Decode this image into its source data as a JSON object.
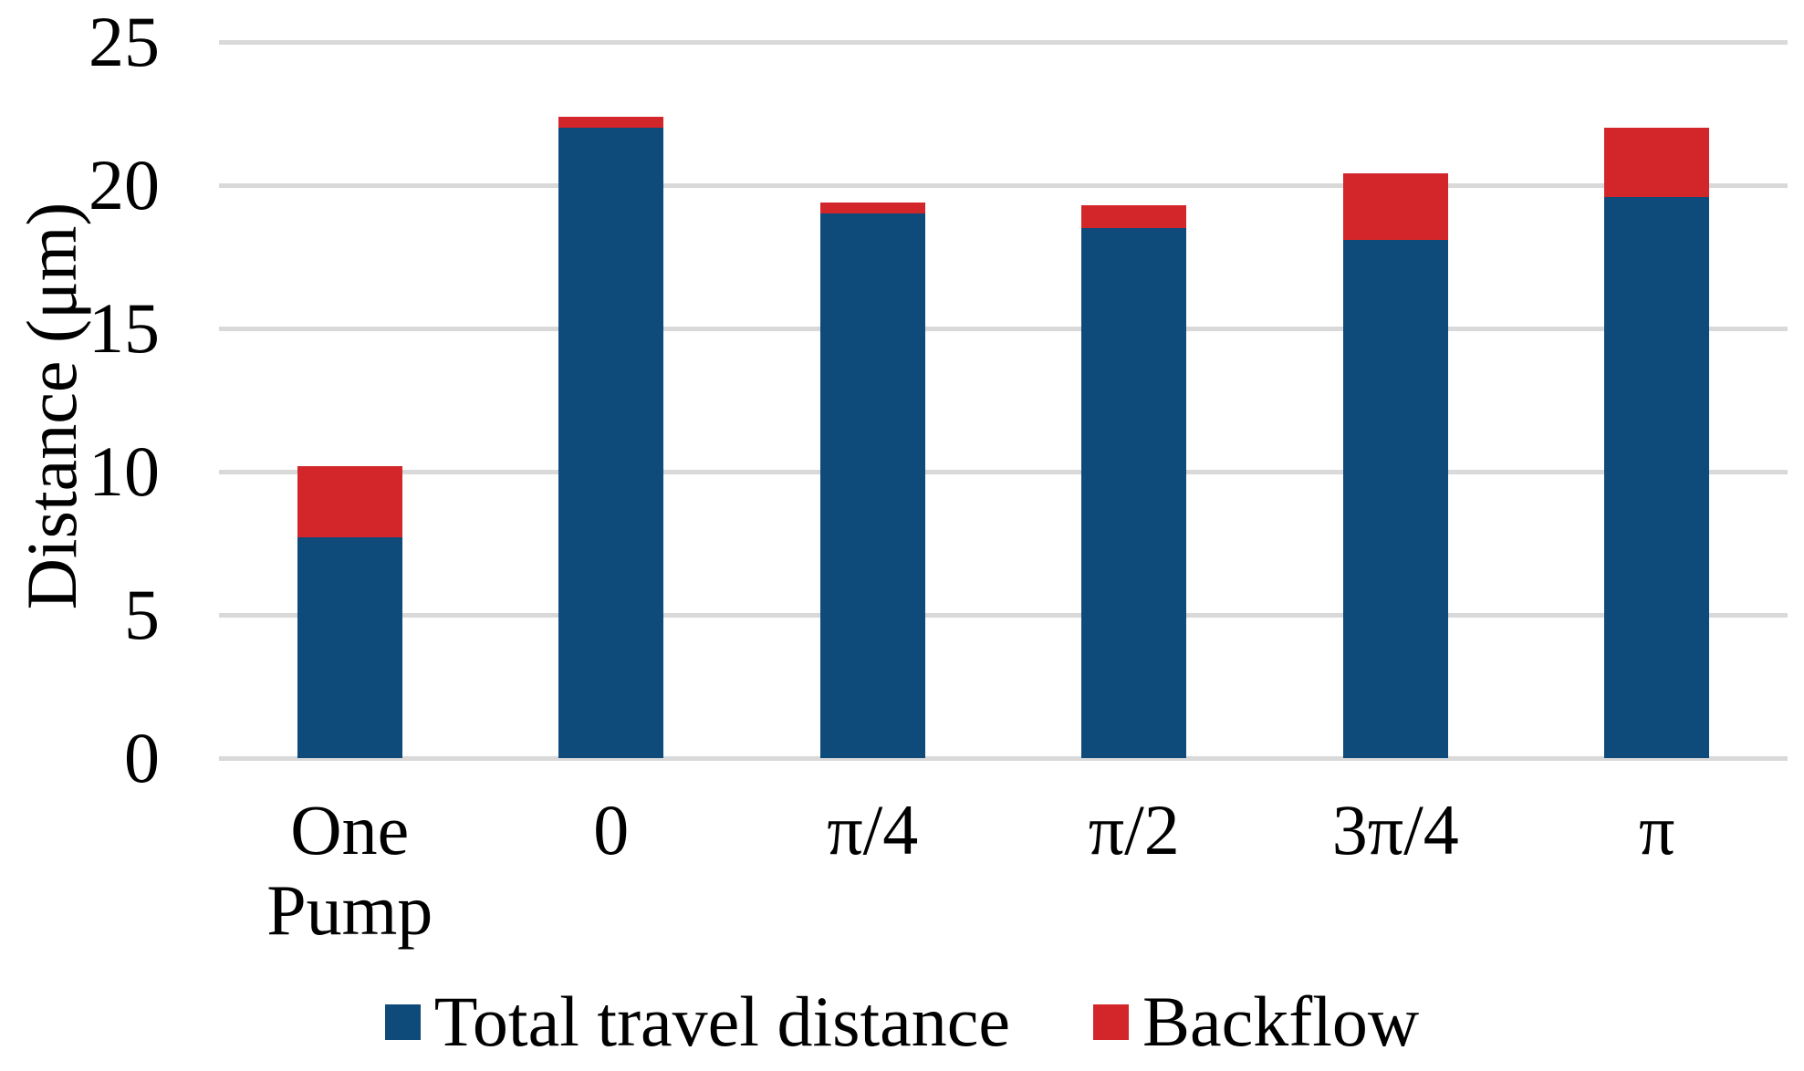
{
  "chart_data": {
    "type": "bar",
    "stacked": true,
    "title": "",
    "xlabel": "",
    "ylabel": "Distance (μm)",
    "categories": [
      "One Pump",
      "0",
      "π/4",
      "π/2",
      "3π/4",
      "π"
    ],
    "series": [
      {
        "name": "Total travel distance",
        "color": "#0e4a7a",
        "values": [
          7.7,
          22.0,
          19.0,
          18.5,
          18.1,
          19.6
        ]
      },
      {
        "name": "Backflow",
        "color": "#d2262a",
        "values": [
          2.5,
          0.4,
          0.4,
          0.8,
          2.3,
          2.4
        ]
      }
    ],
    "stack_totals": [
      10.2,
      22.4,
      19.4,
      19.3,
      20.4,
      22.0
    ],
    "ylim": [
      0,
      25
    ],
    "yticks": [
      0,
      5,
      10,
      15,
      20,
      25
    ],
    "grid": "horizontal",
    "gridline_color": "#d9d9d9",
    "background_color": "#ffffff",
    "legend_position": "bottom-center"
  }
}
